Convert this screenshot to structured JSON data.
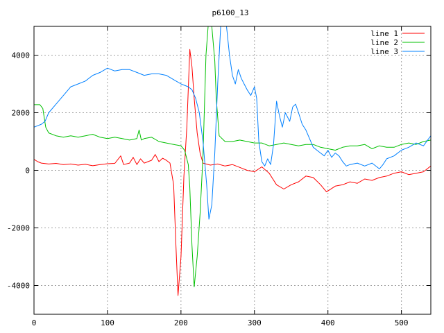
{
  "chart_data": {
    "type": "line",
    "title": "p6100_13",
    "xlabel": "",
    "ylabel": "",
    "xlim": [
      0,
      540
    ],
    "ylim": [
      -5000,
      5000
    ],
    "x_ticks": [
      0,
      100,
      200,
      300,
      400,
      500
    ],
    "y_ticks": [
      -4000,
      -2000,
      0,
      2000,
      4000
    ],
    "x_tick_labels": [
      "0",
      "100",
      "200",
      "300",
      "400",
      "500"
    ],
    "y_tick_labels": [
      "-4000",
      "-2000",
      "0",
      "2000",
      "4000"
    ],
    "grid": true,
    "legend_position": "top-right",
    "series": [
      {
        "name": "line 1",
        "color": "#ff0000",
        "points": [
          [
            0,
            380
          ],
          [
            5,
            300
          ],
          [
            10,
            250
          ],
          [
            20,
            220
          ],
          [
            30,
            240
          ],
          [
            40,
            200
          ],
          [
            50,
            220
          ],
          [
            60,
            180
          ],
          [
            70,
            210
          ],
          [
            80,
            160
          ],
          [
            90,
            200
          ],
          [
            100,
            230
          ],
          [
            110,
            240
          ],
          [
            118,
            500
          ],
          [
            122,
            200
          ],
          [
            130,
            250
          ],
          [
            135,
            450
          ],
          [
            140,
            200
          ],
          [
            145,
            400
          ],
          [
            150,
            250
          ],
          [
            160,
            350
          ],
          [
            165,
            550
          ],
          [
            170,
            300
          ],
          [
            175,
            420
          ],
          [
            180,
            350
          ],
          [
            185,
            250
          ],
          [
            190,
            -500
          ],
          [
            193,
            -2500
          ],
          [
            196,
            -4350
          ],
          [
            200,
            -3000
          ],
          [
            204,
            -200
          ],
          [
            208,
            1500
          ],
          [
            212,
            4200
          ],
          [
            215,
            3600
          ],
          [
            218,
            2500
          ],
          [
            222,
            1300
          ],
          [
            226,
            600
          ],
          [
            230,
            250
          ],
          [
            240,
            180
          ],
          [
            250,
            220
          ],
          [
            260,
            150
          ],
          [
            270,
            200
          ],
          [
            280,
            100
          ],
          [
            290,
            0
          ],
          [
            300,
            -50
          ],
          [
            310,
            120
          ],
          [
            320,
            -100
          ],
          [
            330,
            -500
          ],
          [
            340,
            -650
          ],
          [
            350,
            -500
          ],
          [
            360,
            -400
          ],
          [
            370,
            -200
          ],
          [
            380,
            -250
          ],
          [
            390,
            -500
          ],
          [
            398,
            -750
          ],
          [
            410,
            -550
          ],
          [
            420,
            -500
          ],
          [
            430,
            -400
          ],
          [
            440,
            -450
          ],
          [
            450,
            -300
          ],
          [
            460,
            -350
          ],
          [
            470,
            -250
          ],
          [
            480,
            -200
          ],
          [
            490,
            -100
          ],
          [
            500,
            -50
          ],
          [
            510,
            -150
          ],
          [
            520,
            -100
          ],
          [
            530,
            -50
          ],
          [
            540,
            150
          ]
        ]
      },
      {
        "name": "line 2",
        "color": "#00c000",
        "points": [
          [
            0,
            2280
          ],
          [
            8,
            2280
          ],
          [
            12,
            2150
          ],
          [
            16,
            1500
          ],
          [
            20,
            1300
          ],
          [
            30,
            1200
          ],
          [
            40,
            1150
          ],
          [
            50,
            1200
          ],
          [
            60,
            1150
          ],
          [
            70,
            1200
          ],
          [
            80,
            1250
          ],
          [
            90,
            1150
          ],
          [
            100,
            1100
          ],
          [
            110,
            1150
          ],
          [
            120,
            1100
          ],
          [
            130,
            1050
          ],
          [
            140,
            1100
          ],
          [
            143,
            1400
          ],
          [
            146,
            1050
          ],
          [
            150,
            1100
          ],
          [
            160,
            1150
          ],
          [
            170,
            1000
          ],
          [
            180,
            950
          ],
          [
            190,
            900
          ],
          [
            200,
            850
          ],
          [
            205,
            700
          ],
          [
            210,
            200
          ],
          [
            212,
            -600
          ],
          [
            215,
            -2600
          ],
          [
            218,
            -4050
          ],
          [
            222,
            -3000
          ],
          [
            226,
            -1500
          ],
          [
            230,
            500
          ],
          [
            234,
            4000
          ],
          [
            237,
            5000
          ],
          [
            242,
            5000
          ],
          [
            246,
            3800
          ],
          [
            248,
            2500
          ],
          [
            252,
            1200
          ],
          [
            260,
            1000
          ],
          [
            270,
            1000
          ],
          [
            280,
            1050
          ],
          [
            290,
            1000
          ],
          [
            300,
            950
          ],
          [
            310,
            950
          ],
          [
            320,
            850
          ],
          [
            330,
            900
          ],
          [
            340,
            950
          ],
          [
            350,
            900
          ],
          [
            360,
            850
          ],
          [
            370,
            900
          ],
          [
            380,
            900
          ],
          [
            390,
            800
          ],
          [
            400,
            750
          ],
          [
            410,
            700
          ],
          [
            420,
            800
          ],
          [
            430,
            850
          ],
          [
            440,
            850
          ],
          [
            450,
            900
          ],
          [
            460,
            750
          ],
          [
            470,
            850
          ],
          [
            480,
            800
          ],
          [
            490,
            800
          ],
          [
            500,
            900
          ],
          [
            510,
            950
          ],
          [
            520,
            900
          ],
          [
            530,
            1000
          ],
          [
            540,
            1050
          ]
        ]
      },
      {
        "name": "line 3",
        "color": "#0080ff",
        "points": [
          [
            0,
            1500
          ],
          [
            5,
            1550
          ],
          [
            10,
            1600
          ],
          [
            15,
            1700
          ],
          [
            20,
            2000
          ],
          [
            30,
            2300
          ],
          [
            40,
            2600
          ],
          [
            50,
            2900
          ],
          [
            60,
            3000
          ],
          [
            70,
            3100
          ],
          [
            80,
            3300
          ],
          [
            90,
            3400
          ],
          [
            100,
            3550
          ],
          [
            110,
            3450
          ],
          [
            120,
            3500
          ],
          [
            130,
            3500
          ],
          [
            140,
            3400
          ],
          [
            150,
            3300
          ],
          [
            160,
            3350
          ],
          [
            170,
            3350
          ],
          [
            180,
            3300
          ],
          [
            190,
            3150
          ],
          [
            200,
            3000
          ],
          [
            210,
            2900
          ],
          [
            215,
            2800
          ],
          [
            220,
            2500
          ],
          [
            225,
            2000
          ],
          [
            230,
            1000
          ],
          [
            235,
            -500
          ],
          [
            238,
            -1700
          ],
          [
            242,
            -1200
          ],
          [
            246,
            600
          ],
          [
            250,
            3000
          ],
          [
            254,
            5000
          ],
          [
            262,
            5000
          ],
          [
            266,
            4000
          ],
          [
            270,
            3300
          ],
          [
            274,
            3000
          ],
          [
            278,
            3500
          ],
          [
            282,
            3200
          ],
          [
            286,
            3000
          ],
          [
            290,
            2800
          ],
          [
            295,
            2600
          ],
          [
            300,
            2900
          ],
          [
            303,
            2500
          ],
          [
            306,
            1000
          ],
          [
            310,
            300
          ],
          [
            314,
            150
          ],
          [
            318,
            400
          ],
          [
            322,
            200
          ],
          [
            326,
            900
          ],
          [
            330,
            2400
          ],
          [
            334,
            1900
          ],
          [
            338,
            1500
          ],
          [
            342,
            2000
          ],
          [
            348,
            1700
          ],
          [
            352,
            2200
          ],
          [
            356,
            2300
          ],
          [
            360,
            2000
          ],
          [
            365,
            1600
          ],
          [
            370,
            1400
          ],
          [
            375,
            1100
          ],
          [
            380,
            800
          ],
          [
            385,
            700
          ],
          [
            390,
            600
          ],
          [
            395,
            500
          ],
          [
            400,
            700
          ],
          [
            405,
            450
          ],
          [
            410,
            600
          ],
          [
            415,
            500
          ],
          [
            420,
            300
          ],
          [
            425,
            150
          ],
          [
            430,
            200
          ],
          [
            440,
            250
          ],
          [
            450,
            150
          ],
          [
            460,
            250
          ],
          [
            470,
            50
          ],
          [
            475,
            200
          ],
          [
            480,
            400
          ],
          [
            490,
            500
          ],
          [
            500,
            700
          ],
          [
            510,
            800
          ],
          [
            520,
            950
          ],
          [
            530,
            850
          ],
          [
            540,
            1200
          ]
        ]
      }
    ]
  }
}
